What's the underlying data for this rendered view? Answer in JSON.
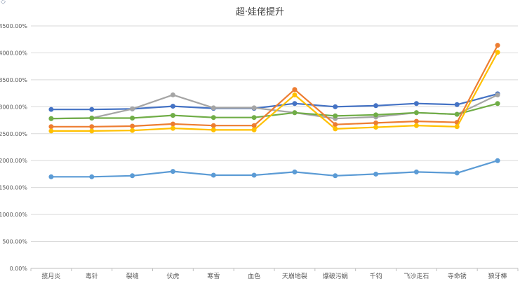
{
  "chart_data": {
    "type": "line",
    "title": "超·娃佬提升",
    "xlabel": "",
    "ylabel": "",
    "ylim": [
      0,
      4500
    ],
    "yticks": [
      0,
      500,
      1000,
      1500,
      2000,
      2500,
      3000,
      3500,
      4000,
      4500
    ],
    "ytick_labels": [
      "0.00%",
      "500.00%",
      "1000.00%",
      "1500.00%",
      "2000.00%",
      "2500.00%",
      "3000.00%",
      "3500.00%",
      "4000.00%",
      "4500.00%"
    ],
    "grid": true,
    "legend": "none",
    "categories": [
      "揽月炎",
      "毒针",
      "裂缝",
      "伏虎",
      "寒雪",
      "血色",
      "天崩地裂",
      "爆破污蜗",
      "千钧",
      "飞沙走石",
      "寺命锈",
      "狼牙棒"
    ],
    "series": [
      {
        "color": "#4472c4",
        "values": [
          2950,
          2950,
          2960,
          3010,
          2970,
          2970,
          3060,
          3000,
          3020,
          3060,
          3040,
          3240
        ]
      },
      {
        "color": "#a5a5a5",
        "values": [
          2780,
          2790,
          2960,
          3220,
          2980,
          2980,
          2890,
          2780,
          2810,
          2890,
          2860,
          3220
        ]
      },
      {
        "color": "#70ad47",
        "values": [
          2780,
          2790,
          2790,
          2840,
          2800,
          2800,
          2890,
          2830,
          2850,
          2890,
          2860,
          3060
        ]
      },
      {
        "color": "#ed7d31",
        "values": [
          2630,
          2630,
          2640,
          2680,
          2650,
          2650,
          3320,
          2670,
          2700,
          2730,
          2710,
          4140
        ]
      },
      {
        "color": "#ffc000",
        "values": [
          2550,
          2550,
          2560,
          2600,
          2570,
          2570,
          3220,
          2590,
          2620,
          2650,
          2630,
          4010
        ]
      },
      {
        "color": "#5b9bd5",
        "values": [
          1700,
          1700,
          1720,
          1800,
          1730,
          1730,
          1790,
          1720,
          1750,
          1790,
          1770,
          2000
        ]
      }
    ]
  }
}
